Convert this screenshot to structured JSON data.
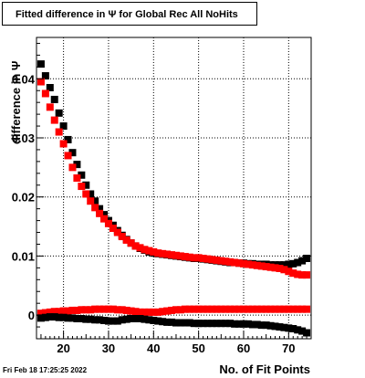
{
  "chart_data": {
    "type": "scatter",
    "title": "Fitted difference in  Ψ  for Global Rec All NoHits",
    "xlabel": "No. of Fit Points",
    "ylabel": "difference in  Ψ",
    "xlim": [
      14,
      75
    ],
    "ylim": [
      -0.004,
      0.047
    ],
    "x_ticks": [
      20,
      30,
      40,
      50,
      60,
      70
    ],
    "y_ticks": [
      0,
      0.01,
      0.02,
      0.03,
      0.04
    ],
    "x_tick_labels": [
      "20",
      "30",
      "40",
      "50",
      "60",
      "70"
    ],
    "y_tick_labels": [
      "0",
      "0.01",
      "0.02",
      "0.03",
      "0.04"
    ],
    "grid": true,
    "colors": {
      "black": "#000000",
      "red": "#ff0000"
    },
    "x": [
      15,
      16,
      17,
      18,
      19,
      20,
      21,
      22,
      23,
      24,
      25,
      26,
      27,
      28,
      29,
      30,
      31,
      32,
      33,
      34,
      35,
      36,
      37,
      38,
      39,
      40,
      41,
      42,
      43,
      44,
      45,
      46,
      47,
      48,
      49,
      50,
      51,
      52,
      53,
      54,
      55,
      56,
      57,
      58,
      59,
      60,
      61,
      62,
      63,
      64,
      65,
      66,
      67,
      68,
      69,
      70,
      71,
      72,
      73,
      74
    ],
    "series": [
      {
        "color": "black",
        "values": [
          0.0425,
          0.0405,
          0.0385,
          0.0365,
          0.0342,
          0.032,
          0.0297,
          0.0275,
          0.0255,
          0.0237,
          0.022,
          0.0205,
          0.0193,
          0.018,
          0.017,
          0.016,
          0.0152,
          0.0143,
          0.0135,
          0.0128,
          0.0122,
          0.0117,
          0.0113,
          0.011,
          0.0107,
          0.0105,
          0.0104,
          0.0103,
          0.0102,
          0.0101,
          0.01,
          0.0099,
          0.0098,
          0.0097,
          0.0096,
          0.0096,
          0.0095,
          0.0094,
          0.0093,
          0.0092,
          0.0091,
          0.009,
          0.0089,
          0.0089,
          0.0088,
          0.0088,
          0.0087,
          0.0087,
          0.0086,
          0.0086,
          0.0086,
          0.0085,
          0.0085,
          0.0085,
          0.0085,
          0.0086,
          0.0087,
          0.0089,
          0.0092,
          0.0096
        ]
      },
      {
        "color": "red",
        "values": [
          0.0395,
          0.0375,
          0.0352,
          0.033,
          0.031,
          0.029,
          0.027,
          0.025,
          0.0232,
          0.0218,
          0.0205,
          0.0193,
          0.0182,
          0.0172,
          0.0163,
          0.0155,
          0.0147,
          0.014,
          0.0133,
          0.0127,
          0.0122,
          0.0117,
          0.0114,
          0.0111,
          0.0109,
          0.0107,
          0.0105,
          0.0104,
          0.0103,
          0.0102,
          0.0101,
          0.01,
          0.0099,
          0.0098,
          0.0097,
          0.0097,
          0.0096,
          0.0095,
          0.0094,
          0.0093,
          0.0092,
          0.0091,
          0.009,
          0.0089,
          0.0088,
          0.0087,
          0.0086,
          0.0085,
          0.0084,
          0.0083,
          0.0082,
          0.0081,
          0.008,
          0.0079,
          0.0077,
          0.0074,
          0.0071,
          0.0069,
          0.0068,
          0.0068
        ]
      },
      {
        "color": "red",
        "values": [
          0.0003,
          0.0004,
          0.0005,
          0.0006,
          0.0006,
          0.0007,
          0.0007,
          0.0008,
          0.0008,
          0.0009,
          0.0009,
          0.0009,
          0.001,
          0.001,
          0.001,
          0.001,
          0.001,
          0.0009,
          0.0009,
          0.0008,
          0.0007,
          0.0006,
          0.0005,
          0.0005,
          0.0005,
          0.0005,
          0.0005,
          0.0006,
          0.0007,
          0.0008,
          0.0009,
          0.0009,
          0.001,
          0.001,
          0.001,
          0.001,
          0.001,
          0.001,
          0.001,
          0.001,
          0.001,
          0.001,
          0.001,
          0.001,
          0.001,
          0.001,
          0.001,
          0.001,
          0.001,
          0.001,
          0.001,
          0.001,
          0.001,
          0.001,
          0.001,
          0.001,
          0.001,
          0.001,
          0.001,
          0.001
        ]
      },
      {
        "color": "black",
        "values": [
          -0.0005,
          -0.0004,
          -0.0003,
          -0.0003,
          -0.0004,
          -0.0004,
          -0.0005,
          -0.0005,
          -0.0006,
          -0.0006,
          -0.0007,
          -0.0007,
          -0.0008,
          -0.0008,
          -0.0009,
          -0.001,
          -0.001,
          -0.001,
          -0.0008,
          -0.0007,
          -0.0006,
          -0.0006,
          -0.0006,
          -0.0007,
          -0.0008,
          -0.0009,
          -0.001,
          -0.0011,
          -0.0012,
          -0.0012,
          -0.0013,
          -0.0013,
          -0.0013,
          -0.0013,
          -0.0014,
          -0.0014,
          -0.0014,
          -0.0014,
          -0.0014,
          -0.0014,
          -0.0014,
          -0.0014,
          -0.0014,
          -0.0015,
          -0.0015,
          -0.0015,
          -0.0015,
          -0.0016,
          -0.0016,
          -0.0017,
          -0.0017,
          -0.0018,
          -0.0019,
          -0.002,
          -0.0021,
          -0.0022,
          -0.0023,
          -0.0025,
          -0.0027,
          -0.003
        ]
      }
    ]
  },
  "footer": {
    "date": "Fri Feb 18 17:25:25 2022"
  }
}
